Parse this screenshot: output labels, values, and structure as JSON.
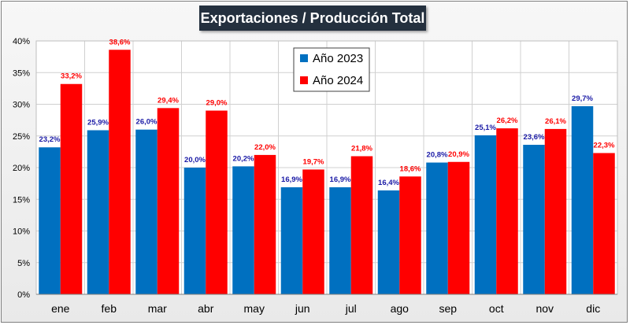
{
  "chart_data": {
    "type": "bar",
    "title": "Exportaciones / Producción Total",
    "xlabel": "",
    "ylabel": "",
    "categories": [
      "ene",
      "feb",
      "mar",
      "abr",
      "may",
      "jun",
      "jul",
      "ago",
      "sep",
      "oct",
      "nov",
      "dic"
    ],
    "series": [
      {
        "name": "Año 2023",
        "color": "#0070c0",
        "label_color": "#1a1aa6",
        "values": [
          23.2,
          25.9,
          26.0,
          20.0,
          20.2,
          16.9,
          16.9,
          16.4,
          20.8,
          25.1,
          23.6,
          29.7
        ],
        "labels": [
          "23,2%",
          "25,9%",
          "26,0%",
          "20,0%",
          "20,2%",
          "16,9%",
          "16,9%",
          "16,4%",
          "20,8%",
          "25,1%",
          "23,6%",
          "29,7%"
        ]
      },
      {
        "name": "Año 2024",
        "color": "#ff0000",
        "label_color": "#ff0000",
        "values": [
          33.2,
          38.6,
          29.4,
          29.0,
          22.0,
          19.7,
          21.8,
          18.6,
          20.9,
          26.2,
          26.1,
          22.3
        ],
        "labels": [
          "33,2%",
          "38,6%",
          "29,4%",
          "29,0%",
          "22,0%",
          "19,7%",
          "21,8%",
          "18,6%",
          "20,9%",
          "26,2%",
          "26,1%",
          "22,3%"
        ]
      }
    ],
    "ylim": [
      0,
      40
    ],
    "yticks": [
      0,
      5,
      10,
      15,
      20,
      25,
      30,
      35,
      40
    ],
    "ytick_labels": [
      "0%",
      "5%",
      "10%",
      "15%",
      "20%",
      "25%",
      "30%",
      "35%",
      "40%"
    ],
    "grid": true,
    "legend_position": "top-center"
  }
}
